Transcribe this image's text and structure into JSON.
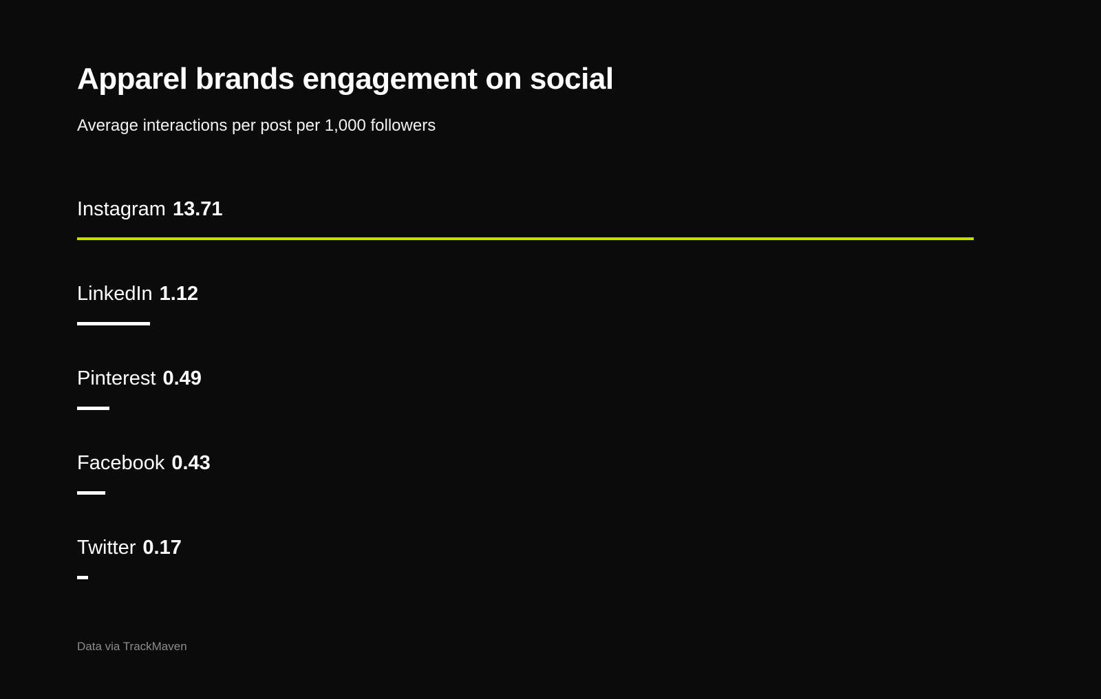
{
  "chart_data": {
    "type": "bar",
    "orientation": "horizontal",
    "title": "Apparel brands engagement on social",
    "subtitle": "Average interactions per post per 1,000 followers",
    "categories": [
      "Instagram",
      "LinkedIn",
      "Pinterest",
      "Facebook",
      "Twitter"
    ],
    "values": [
      13.71,
      1.12,
      0.49,
      0.43,
      0.17
    ],
    "value_labels": [
      "13.71",
      "1.12",
      "0.49",
      "0.43",
      "0.17"
    ],
    "xlim": [
      0,
      13.71
    ],
    "bar_colors": [
      "#c6e003",
      "#ffffff",
      "#ffffff",
      "#ffffff",
      "#ffffff"
    ],
    "grid": false,
    "legend": false,
    "source": "Data via TrackMaven"
  },
  "colors": {
    "background": "#0b0b0b",
    "text": "#ffffff",
    "muted": "#8c8c8c",
    "accent": "#c6e003"
  }
}
